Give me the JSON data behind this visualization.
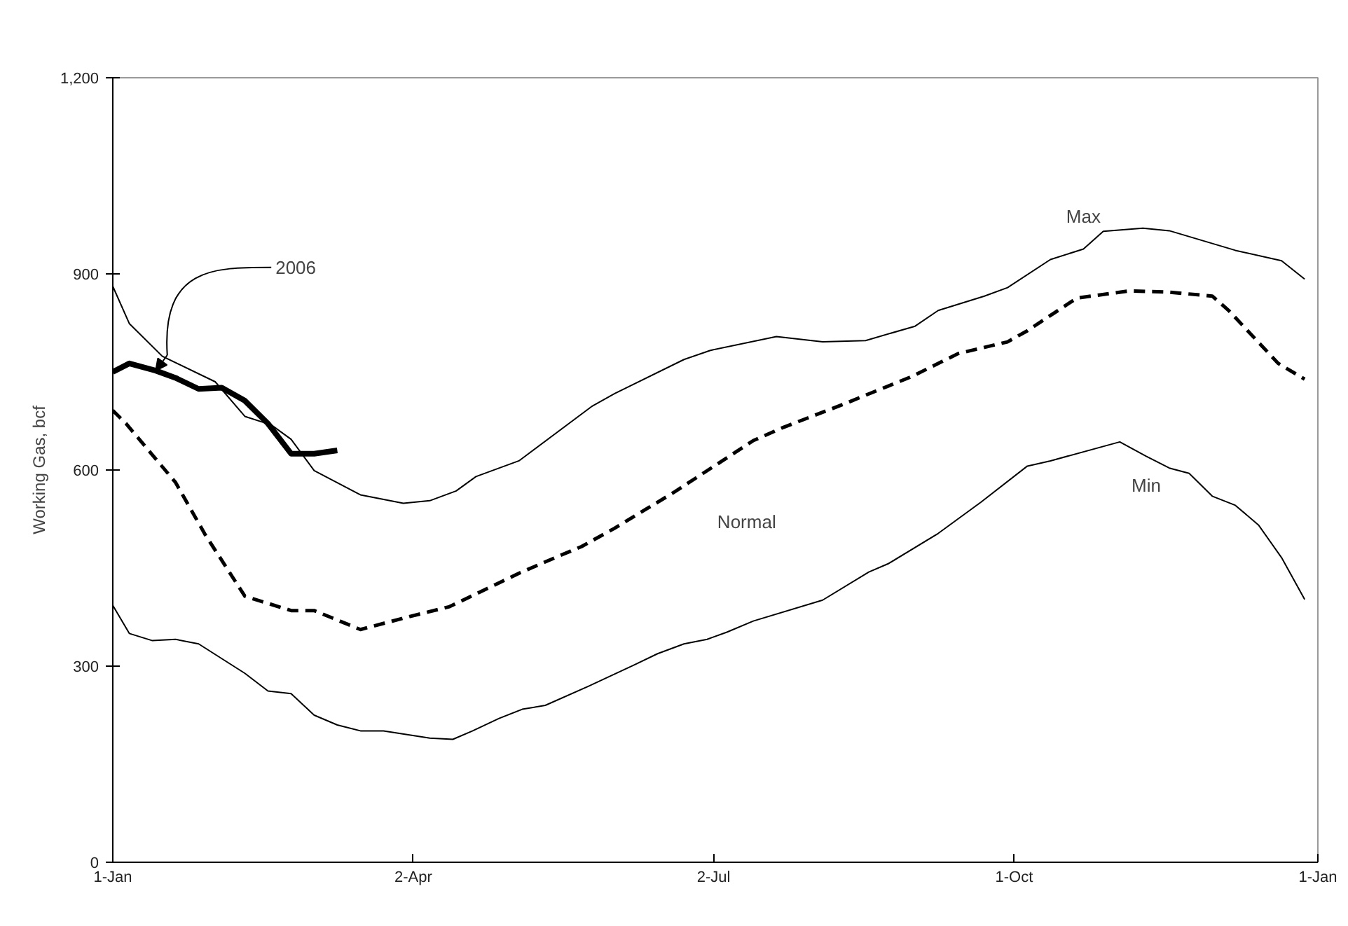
{
  "chart_data": {
    "type": "line",
    "ylabel": "Working Gas, bcf",
    "xlim": [
      "2006-01-01",
      "2007-01-01"
    ],
    "xticks": [
      {
        "value": "2006-01-01",
        "label": "1-Jan"
      },
      {
        "value": "2006-04-02",
        "label": "2-Apr"
      },
      {
        "value": "2006-07-02",
        "label": "2-Jul"
      },
      {
        "value": "2006-10-01",
        "label": "1-Oct"
      },
      {
        "value": "2007-01-01",
        "label": "1-Jan"
      }
    ],
    "ylim": [
      0,
      1200
    ],
    "yticks": [
      0,
      300,
      600,
      900,
      {
        "value": 1200,
        "label": "1,200"
      }
    ],
    "grid": false,
    "series": [
      {
        "name": "Max",
        "color": "#000000",
        "line_style": "solid",
        "x": [
          "2006-01-01",
          "2006-01-06",
          "2006-01-16",
          "2006-02-01",
          "2006-02-10",
          "2006-02-18",
          "2006-02-24",
          "2006-03-03",
          "2006-03-17",
          "2006-03-30",
          "2006-04-07",
          "2006-04-15",
          "2006-04-21",
          "2006-05-04",
          "2006-05-26",
          "2006-06-02",
          "2006-06-23",
          "2006-07-01",
          "2006-07-21",
          "2006-08-04",
          "2006-08-17",
          "2006-09-01",
          "2006-09-08",
          "2006-09-22",
          "2006-09-29",
          "2006-10-12",
          "2006-10-22",
          "2006-10-28",
          "2006-11-09",
          "2006-11-17",
          "2006-12-07",
          "2006-12-21",
          "2006-12-28"
        ],
        "values": [
          881,
          824,
          774,
          735,
          682,
          669,
          647,
          599,
          562,
          549,
          553,
          568,
          590,
          614,
          697,
          717,
          769,
          783,
          804,
          796,
          798,
          820,
          844,
          866,
          879,
          922,
          938,
          965,
          970,
          966,
          936,
          920,
          892
        ]
      },
      {
        "name": "Normal",
        "color": "#000000",
        "line_style": "dashed",
        "x": [
          "2006-01-01",
          "2006-01-05",
          "2006-01-20",
          "2006-01-29",
          "2006-02-10",
          "2006-02-24",
          "2006-03-03",
          "2006-03-17",
          "2006-04-01",
          "2006-04-13",
          "2006-05-04",
          "2006-05-15",
          "2006-05-23",
          "2006-06-02",
          "2006-06-20",
          "2006-07-14",
          "2006-07-23",
          "2006-08-10",
          "2006-08-31",
          "2006-09-14",
          "2006-09-29",
          "2006-10-05",
          "2006-10-20",
          "2006-11-05",
          "2006-11-17",
          "2006-11-30",
          "2006-12-05",
          "2006-12-20",
          "2006-12-28"
        ],
        "values": [
          691,
          671,
          581,
          501,
          407,
          385,
          385,
          356,
          376,
          391,
          442,
          466,
          483,
          511,
          566,
          645,
          665,
          700,
          743,
          778,
          796,
          813,
          863,
          874,
          872,
          866,
          844,
          763,
          739
        ]
      },
      {
        "name": "Min",
        "color": "#000000",
        "line_style": "solid",
        "x": [
          "2006-01-01",
          "2006-01-06",
          "2006-01-13",
          "2006-01-20",
          "2006-01-27",
          "2006-02-10",
          "2006-02-17",
          "2006-02-24",
          "2006-03-03",
          "2006-03-10",
          "2006-03-17",
          "2006-03-24",
          "2006-04-07",
          "2006-04-14",
          "2006-04-20",
          "2006-04-28",
          "2006-05-05",
          "2006-05-12",
          "2006-05-25",
          "2006-06-08",
          "2006-06-15",
          "2006-06-23",
          "2006-06-30",
          "2006-07-06",
          "2006-07-14",
          "2006-08-04",
          "2006-08-18",
          "2006-08-24",
          "2006-09-08",
          "2006-09-21",
          "2006-10-05",
          "2006-10-12",
          "2006-11-02",
          "2006-11-10",
          "2006-11-17",
          "2006-11-23",
          "2006-11-30",
          "2006-12-07",
          "2006-12-14",
          "2006-12-21",
          "2006-12-28"
        ],
        "values": [
          393,
          350,
          339,
          341,
          334,
          289,
          262,
          258,
          225,
          210,
          201,
          201,
          190,
          188,
          201,
          220,
          234,
          240,
          269,
          302,
          319,
          334,
          341,
          352,
          369,
          401,
          444,
          457,
          503,
          551,
          606,
          614,
          643,
          621,
          603,
          595,
          560,
          546,
          516,
          466,
          402
        ]
      },
      {
        "name": "2006",
        "color": "#000000",
        "line_style": "solid",
        "x": [
          "2006-01-01",
          "2006-01-06",
          "2006-01-14",
          "2006-01-20",
          "2006-01-27",
          "2006-02-03",
          "2006-02-10",
          "2006-02-17",
          "2006-02-24",
          "2006-03-03",
          "2006-03-10"
        ],
        "values": [
          750,
          763,
          752,
          741,
          724,
          726,
          706,
          671,
          625,
          625,
          630
        ]
      }
    ]
  }
}
